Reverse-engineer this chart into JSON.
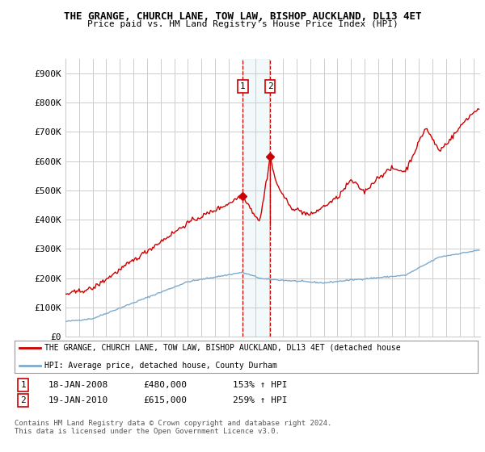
{
  "title": "THE GRANGE, CHURCH LANE, TOW LAW, BISHOP AUCKLAND, DL13 4ET",
  "subtitle": "Price paid vs. HM Land Registry's House Price Index (HPI)",
  "ylabel_ticks": [
    "£0",
    "£100K",
    "£200K",
    "£300K",
    "£400K",
    "£500K",
    "£600K",
    "£700K",
    "£800K",
    "£900K"
  ],
  "ylim": [
    0,
    950000
  ],
  "xlim_start": 1995.0,
  "xlim_end": 2025.5,
  "hpi_color": "#7faacc",
  "price_color": "#cc0000",
  "marker1_x": 2008.05,
  "marker2_x": 2010.05,
  "marker1_price": 480000,
  "marker2_price": 615000,
  "marker1_date": "18-JAN-2008",
  "marker2_date": "19-JAN-2010",
  "marker1_pct": "153% ↑ HPI",
  "marker2_pct": "259% ↑ HPI",
  "legend_line1": "THE GRANGE, CHURCH LANE, TOW LAW, BISHOP AUCKLAND, DL13 4ET (detached house",
  "legend_line2": "HPI: Average price, detached house, County Durham",
  "footnote": "Contains HM Land Registry data © Crown copyright and database right 2024.\nThis data is licensed under the Open Government Licence v3.0.",
  "background_color": "#ffffff",
  "grid_color": "#cccccc"
}
